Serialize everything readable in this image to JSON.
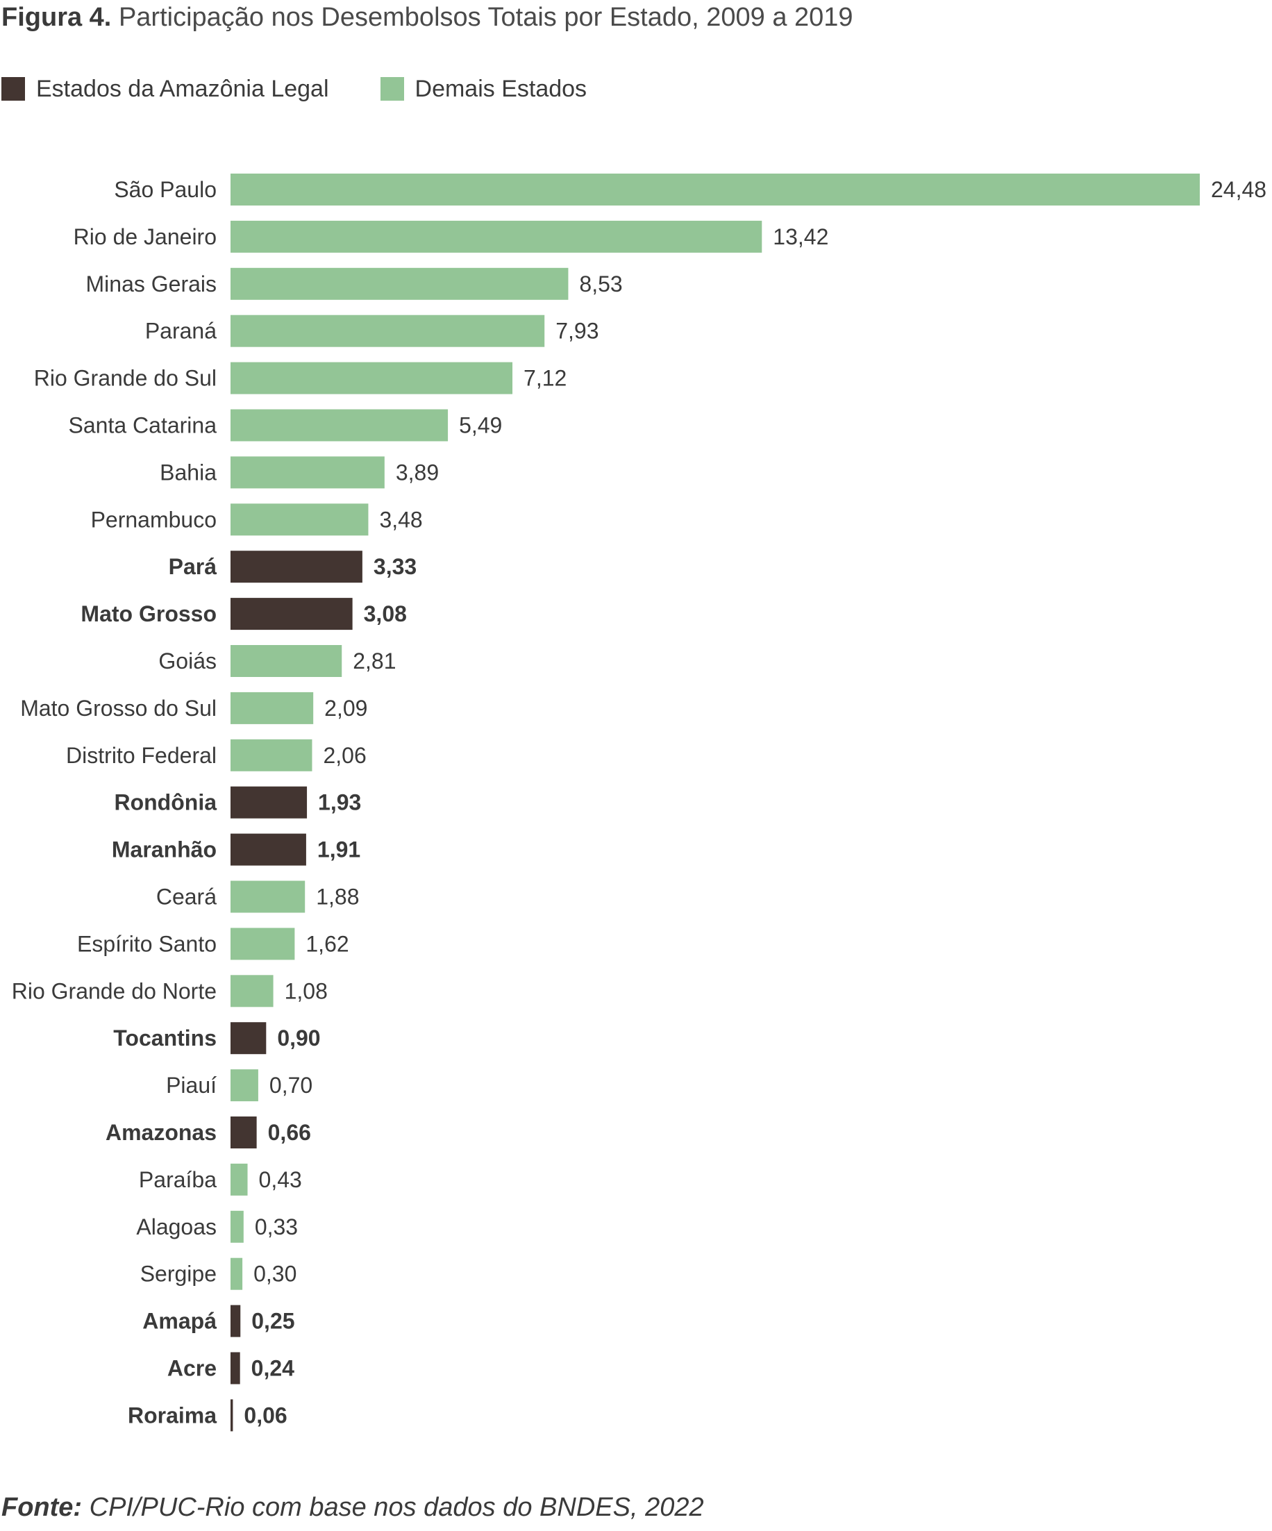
{
  "title": {
    "lead": "Figura 4.",
    "text": "Participação nos Desembolsos Totais por Estado, 2009 a 2019"
  },
  "legend": [
    {
      "label": "Estados da Amazônia Legal",
      "color": "#433531"
    },
    {
      "label": "Demais Estados",
      "color": "#93c596"
    }
  ],
  "source": {
    "lead": "Fonte:",
    "text": "CPI/PUC-Rio com base nos dados do BNDES, 2022"
  },
  "colors": {
    "amazonia": "#433531",
    "demais": "#93c596",
    "label_text": "#3a3a3a"
  },
  "chart_data": {
    "type": "bar",
    "orientation": "horizontal",
    "title": "Participação nos Desembolsos Totais por Estado, 2009 a 2019",
    "xlim": [
      0,
      24.48
    ],
    "grid": false,
    "legend_position": "top-left",
    "categories": [
      "São Paulo",
      "Rio de Janeiro",
      "Minas Gerais",
      "Paraná",
      "Rio Grande do Sul",
      "Santa Catarina",
      "Bahia",
      "Pernambuco",
      "Pará",
      "Mato Grosso",
      "Goiás",
      "Mato Grosso do Sul",
      "Distrito Federal",
      "Rondônia",
      "Maranhão",
      "Ceará",
      "Espírito Santo",
      "Rio Grande do Norte",
      "Tocantins",
      "Piauí",
      "Amazonas",
      "Paraíba",
      "Alagoas",
      "Sergipe",
      "Amapá",
      "Acre",
      "Roraima"
    ],
    "values": [
      24.48,
      13.42,
      8.53,
      7.93,
      7.12,
      5.49,
      3.89,
      3.48,
      3.33,
      3.08,
      2.81,
      2.09,
      2.06,
      1.93,
      1.91,
      1.88,
      1.62,
      1.08,
      0.9,
      0.7,
      0.66,
      0.43,
      0.33,
      0.3,
      0.25,
      0.24,
      0.06
    ],
    "value_labels": [
      "24,48",
      "13,42",
      "8,53",
      "7,93",
      "7,12",
      "5,49",
      "3,89",
      "3,48",
      "3,33",
      "3,08",
      "2,81",
      "2,09",
      "2,06",
      "1,93",
      "1,91",
      "1,88",
      "1,62",
      "1,08",
      "0,90",
      "0,70",
      "0,66",
      "0,43",
      "0,33",
      "0,30",
      "0,25",
      "0,24",
      "0,06"
    ],
    "group": [
      "Demais Estados",
      "Demais Estados",
      "Demais Estados",
      "Demais Estados",
      "Demais Estados",
      "Demais Estados",
      "Demais Estados",
      "Demais Estados",
      "Estados da Amazônia Legal",
      "Estados da Amazônia Legal",
      "Demais Estados",
      "Demais Estados",
      "Demais Estados",
      "Estados da Amazônia Legal",
      "Estados da Amazônia Legal",
      "Demais Estados",
      "Demais Estados",
      "Demais Estados",
      "Estados da Amazônia Legal",
      "Demais Estados",
      "Estados da Amazônia Legal",
      "Demais Estados",
      "Demais Estados",
      "Demais Estados",
      "Estados da Amazônia Legal",
      "Estados da Amazônia Legal",
      "Estados da Amazônia Legal"
    ]
  }
}
